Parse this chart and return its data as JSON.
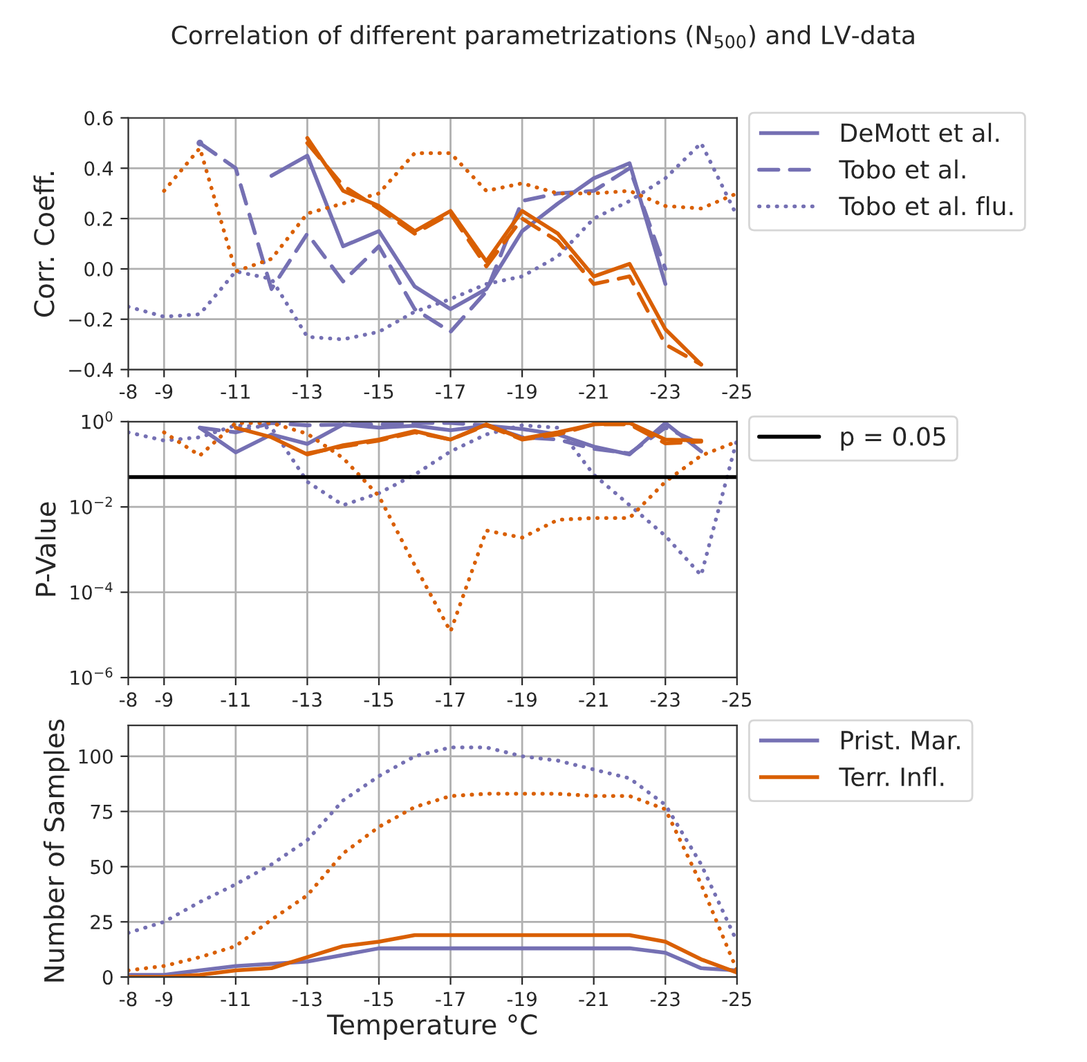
{
  "chart_data": [
    {
      "type": "line",
      "title": "Correlation of different parametrizations (N$_{500}$) and LV-data",
      "ylabel": "Corr. Coeff.",
      "x": [
        -8,
        -9,
        -10,
        -11,
        -12,
        -13,
        -14,
        -15,
        -16,
        -17,
        -18,
        -19,
        -20,
        -21,
        -22,
        -23,
        -24,
        -25
      ],
      "xlim": [
        -8,
        -25
      ],
      "xticks": [
        -8,
        -9,
        -11,
        -13,
        -15,
        -17,
        -19,
        -21,
        -23,
        -25
      ],
      "ylim": [
        -0.4,
        0.6
      ],
      "yticks": [
        {
          "value": -0.4,
          "label": "−0.4"
        },
        {
          "value": -0.2,
          "label": "−0.2"
        },
        {
          "value": 0.0,
          "label": "0.0"
        },
        {
          "value": 0.2,
          "label": "0.2"
        },
        {
          "value": 0.4,
          "label": "0.4"
        },
        {
          "value": 0.6,
          "label": "0.6"
        }
      ],
      "grid": true,
      "legend": "right",
      "series": [
        {
          "name": "DeMott et al.",
          "color": "#7570b3",
          "line_style": "solid",
          "values": [
            null,
            null,
            0.5,
            null,
            0.37,
            0.45,
            0.09,
            0.15,
            -0.07,
            -0.16,
            -0.08,
            0.15,
            0.26,
            0.36,
            0.42,
            -0.06,
            null,
            null
          ]
        },
        {
          "name": "Tobo et al.",
          "color": "#7570b3",
          "line_style": "dashed",
          "values": [
            null,
            null,
            0.5,
            0.4,
            -0.08,
            0.14,
            -0.05,
            0.09,
            -0.16,
            -0.25,
            -0.09,
            0.27,
            0.3,
            0.31,
            0.4,
            0.0,
            null,
            null
          ]
        },
        {
          "name": "Tobo et al. flu.",
          "color": "#7570b3",
          "line_style": "dotted",
          "values": [
            -0.15,
            -0.19,
            -0.18,
            -0.01,
            -0.04,
            -0.27,
            -0.28,
            -0.25,
            -0.17,
            -0.12,
            -0.06,
            -0.03,
            0.05,
            0.2,
            0.27,
            0.36,
            0.5,
            0.21
          ]
        },
        {
          "color": "#d95f02",
          "line_style": "solid",
          "values": [
            null,
            null,
            null,
            null,
            null,
            0.52,
            0.31,
            0.25,
            0.15,
            0.23,
            0.03,
            0.23,
            0.14,
            -0.03,
            0.02,
            -0.24,
            -0.38,
            null
          ]
        },
        {
          "color": "#d95f02",
          "line_style": "dashed",
          "values": [
            null,
            null,
            null,
            null,
            null,
            0.5,
            0.33,
            0.24,
            0.14,
            0.22,
            0.01,
            0.2,
            0.11,
            -0.06,
            -0.03,
            -0.3,
            -0.38,
            null
          ]
        },
        {
          "color": "#d95f02",
          "line_style": "dotted",
          "values": [
            null,
            0.31,
            0.48,
            -0.01,
            0.04,
            0.22,
            0.26,
            0.3,
            0.46,
            0.46,
            0.31,
            0.34,
            0.3,
            0.3,
            0.31,
            0.25,
            0.24,
            0.3
          ]
        }
      ]
    },
    {
      "type": "line",
      "ylabel": "P-Value",
      "log": "y",
      "x": [
        -8,
        -9,
        -10,
        -11,
        -12,
        -13,
        -14,
        -15,
        -16,
        -17,
        -18,
        -19,
        -20,
        -21,
        -22,
        -23,
        -24,
        -25
      ],
      "xlim": [
        -8,
        -25
      ],
      "xticks": [
        -8,
        -9,
        -11,
        -13,
        -15,
        -17,
        -19,
        -21,
        -23,
        -25
      ],
      "ylim": [
        1e-06,
        1
      ],
      "yticks": [
        {
          "value": 1e-06,
          "label": "10$^{−6}$"
        },
        {
          "value": 0.0001,
          "label": "10$^{−4}$"
        },
        {
          "value": 0.01,
          "label": "10$^{−2}$"
        },
        {
          "value": 1,
          "label": "10$^{0}$"
        }
      ],
      "grid": true,
      "legend": "right",
      "ref_lines": [
        {
          "axis": "y",
          "value": 0.05,
          "label": "p = 0.05",
          "color": "#000000",
          "line_style": "solid"
        }
      ],
      "series": [
        {
          "color": "#7570b3",
          "line_style": "solid",
          "values": [
            null,
            null,
            0.72,
            0.19,
            0.5,
            0.3,
            0.86,
            0.72,
            0.8,
            0.63,
            0.8,
            0.67,
            0.5,
            0.26,
            0.17,
            0.93,
            0.2,
            null
          ]
        },
        {
          "color": "#7570b3",
          "line_style": "dashed",
          "values": [
            null,
            null,
            0.72,
            0.56,
            0.93,
            0.82,
            0.86,
            0.86,
            0.93,
            0.93,
            0.82,
            0.43,
            0.38,
            0.23,
            0.18,
            0.72,
            0.3,
            null
          ]
        },
        {
          "color": "#7570b3",
          "line_style": "dotted",
          "values": [
            0.56,
            0.36,
            0.43,
            0.82,
            0.72,
            0.039,
            0.011,
            0.021,
            0.057,
            0.2,
            0.5,
            0.82,
            0.72,
            0.057,
            0.011,
            0.0021,
            0.00025,
            0.38
          ]
        },
        {
          "color": "#d95f02",
          "line_style": "solid",
          "values": [
            null,
            null,
            null,
            0.72,
            0.43,
            0.17,
            0.28,
            0.38,
            0.6,
            0.38,
            0.86,
            0.4,
            0.56,
            0.86,
            0.93,
            0.38,
            0.36,
            null
          ]
        },
        {
          "color": "#d95f02",
          "line_style": "dashed",
          "values": [
            null,
            null,
            null,
            null,
            null,
            0.18,
            0.26,
            0.36,
            0.56,
            0.38,
            0.82,
            0.38,
            0.5,
            0.86,
            0.86,
            0.31,
            0.34,
            null
          ]
        },
        {
          "color": "#d95f02",
          "line_style": "dotted",
          "values": [
            null,
            0.56,
            0.16,
            0.93,
            0.93,
            0.52,
            0.14,
            0.018,
            0.00043,
            1.2e-05,
            0.0028,
            0.0019,
            0.005,
            0.0055,
            0.0055,
            0.039,
            0.16,
            0.34
          ]
        }
      ]
    },
    {
      "type": "line",
      "ylabel": "Number of Samples",
      "xlabel": "Temperature °C",
      "x": [
        -8,
        -9,
        -10,
        -11,
        -12,
        -13,
        -14,
        -15,
        -16,
        -17,
        -18,
        -19,
        -20,
        -21,
        -22,
        -23,
        -24,
        -25
      ],
      "xlim": [
        -8,
        -25
      ],
      "xticks": [
        -8,
        -9,
        -11,
        -13,
        -15,
        -17,
        -19,
        -21,
        -23,
        -25
      ],
      "ylim": [
        0,
        114
      ],
      "yticks": [
        0,
        25,
        50,
        75,
        100
      ],
      "grid": true,
      "legend": "right",
      "series": [
        {
          "name": "Prist. Mar.",
          "color": "#7570b3",
          "line_style": "solid",
          "values": [
            1,
            1,
            3,
            5,
            6,
            7,
            10,
            13,
            13,
            13,
            13,
            13,
            13,
            13,
            13,
            11,
            4,
            3
          ]
        },
        {
          "name": "Terr. Infl.",
          "color": "#d95f02",
          "line_style": "solid",
          "values": [
            0,
            0,
            1,
            3,
            4,
            9,
            14,
            16,
            19,
            19,
            19,
            19,
            19,
            19,
            19,
            16,
            8,
            2
          ]
        },
        {
          "color": "#7570b3",
          "line_style": "dotted",
          "values": [
            20,
            25,
            34,
            42,
            51,
            62,
            80,
            91,
            100,
            104,
            104,
            100,
            98,
            94,
            90,
            78,
            51,
            16
          ]
        },
        {
          "color": "#d95f02",
          "line_style": "dotted",
          "values": [
            3,
            5,
            9,
            14,
            26,
            37,
            56,
            68,
            77,
            82,
            83,
            83,
            83,
            82,
            82,
            76,
            42,
            3
          ]
        }
      ]
    }
  ]
}
